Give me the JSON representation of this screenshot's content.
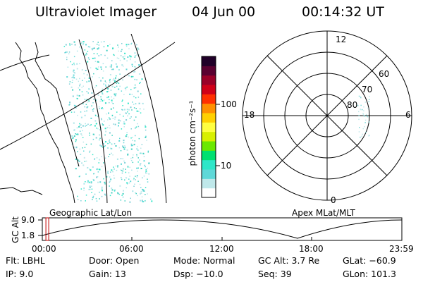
{
  "header": {
    "title": "Ultraviolet Imager",
    "date": "04 Jun 00",
    "time": "00:14:32 UT"
  },
  "colorbar": {
    "label": "photon cm⁻²s⁻¹",
    "ticks": [
      "100",
      "10"
    ],
    "colors": [
      "#ffffff",
      "#bfe8ea",
      "#5fd8d8",
      "#2ee6c8",
      "#00e070",
      "#6be800",
      "#d8f000",
      "#ffff40",
      "#ffd000",
      "#ff9000",
      "#ff3000",
      "#d00018",
      "#9a0028",
      "#5a0030",
      "#200028"
    ]
  },
  "polar": {
    "mlt_labels": {
      "top": "12",
      "left": "18",
      "right": "6",
      "bottom": "0"
    },
    "lat_labels": [
      "60",
      "70",
      "80"
    ]
  },
  "map_labels": {
    "left": "Geographic Lat/Lon",
    "right": "Apex MLat/MLT"
  },
  "timeline": {
    "ylabel": "GC Alt",
    "yticks": [
      "9.0",
      "1.8"
    ],
    "xticks": [
      "00:00",
      "06:00",
      "12:00",
      "18:00",
      "23:59"
    ],
    "marker_fraction": 0.01
  },
  "footer": {
    "flt": "Flt: LBHL",
    "ip": "IP:  9.0",
    "door": "Door: Open",
    "gain": "Gain: 13",
    "mode": "Mode: Normal",
    "dsp": "Dsp:  −10.0",
    "gc_alt": "GC Alt: 3.7 Re",
    "seq": "Seq: 39",
    "glat": "GLat: −60.9",
    "glon": "GLon: 101.3"
  }
}
